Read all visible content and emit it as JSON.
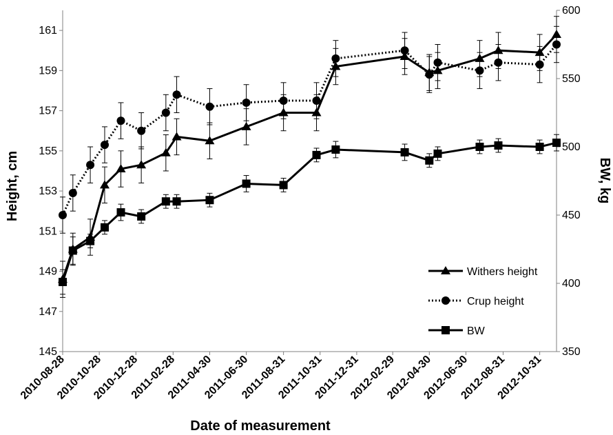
{
  "chart_data": {
    "type": "line",
    "xlabel": "Date of measurement",
    "ylabel_left": "Height, cm",
    "ylabel_right": "BW, kg",
    "ylim_left": [
      145,
      162
    ],
    "ylim_right": [
      350,
      600
    ],
    "yticks_left": [
      145,
      147,
      149,
      151,
      153,
      155,
      157,
      159,
      161
    ],
    "yticks_right": [
      350,
      400,
      450,
      500,
      550,
      600
    ],
    "xlim": [
      "2010-08-28",
      "2012-11-28"
    ],
    "xticks": [
      "2010-08-28",
      "2010-10-28",
      "2010-12-28",
      "2011-02-28",
      "2011-04-30",
      "2011-06-30",
      "2011-08-31",
      "2011-10-31",
      "2011-12-31",
      "2012-02-29",
      "2012-04-30",
      "2012-06-30",
      "2012-08-31",
      "2012-10-31"
    ],
    "legend_position": "bottom-right",
    "grid": false,
    "series": [
      {
        "name": "Withers height",
        "axis": "left",
        "marker": "triangle",
        "line_style": "solid",
        "color": "#000000",
        "points": [
          {
            "x": "2010-08-28",
            "y": 148.6,
            "err": 0.9
          },
          {
            "x": "2010-09-14",
            "y": 150.1,
            "err": 0.8
          },
          {
            "x": "2010-10-13",
            "y": 150.7,
            "err": 0.9
          },
          {
            "x": "2010-11-06",
            "y": 153.3,
            "err": 0.9
          },
          {
            "x": "2010-12-03",
            "y": 154.1,
            "err": 0.9
          },
          {
            "x": "2011-01-06",
            "y": 154.3,
            "err": 0.9
          },
          {
            "x": "2011-02-16",
            "y": 154.9,
            "err": 0.9
          },
          {
            "x": "2011-03-06",
            "y": 155.7,
            "err": 0.9
          },
          {
            "x": "2011-04-30",
            "y": 155.5,
            "err": 0.9
          },
          {
            "x": "2011-06-30",
            "y": 156.2,
            "err": 0.9
          },
          {
            "x": "2011-08-31",
            "y": 156.9,
            "err": 0.9
          },
          {
            "x": "2011-10-25",
            "y": 156.9,
            "err": 0.9
          },
          {
            "x": "2011-11-26",
            "y": 159.2,
            "err": 0.9
          },
          {
            "x": "2012-03-20",
            "y": 159.7,
            "err": 0.9
          },
          {
            "x": "2012-04-30",
            "y": 158.9,
            "err": 0.9
          },
          {
            "x": "2012-05-14",
            "y": 159.0,
            "err": 0.9
          },
          {
            "x": "2012-07-23",
            "y": 159.6,
            "err": 0.9
          },
          {
            "x": "2012-08-23",
            "y": 160.0,
            "err": 0.9
          },
          {
            "x": "2012-10-31",
            "y": 159.9,
            "err": 0.9
          },
          {
            "x": "2012-11-28",
            "y": 160.8,
            "err": 0.9
          }
        ]
      },
      {
        "name": "Crup height",
        "axis": "left",
        "marker": "circle",
        "line_style": "dotted",
        "color": "#000000",
        "points": [
          {
            "x": "2010-08-28",
            "y": 151.8,
            "err": 0.9
          },
          {
            "x": "2010-09-14",
            "y": 152.9,
            "err": 0.9
          },
          {
            "x": "2010-10-13",
            "y": 154.3,
            "err": 0.9
          },
          {
            "x": "2010-11-06",
            "y": 155.3,
            "err": 0.9
          },
          {
            "x": "2010-12-03",
            "y": 156.5,
            "err": 0.9
          },
          {
            "x": "2011-01-06",
            "y": 156.0,
            "err": 0.9
          },
          {
            "x": "2011-02-16",
            "y": 156.9,
            "err": 0.9
          },
          {
            "x": "2011-03-06",
            "y": 157.8,
            "err": 0.9
          },
          {
            "x": "2011-04-30",
            "y": 157.2,
            "err": 0.9
          },
          {
            "x": "2011-06-30",
            "y": 157.4,
            "err": 0.9
          },
          {
            "x": "2011-08-31",
            "y": 157.5,
            "err": 0.9
          },
          {
            "x": "2011-10-25",
            "y": 157.5,
            "err": 0.9
          },
          {
            "x": "2011-11-26",
            "y": 159.6,
            "err": 0.9
          },
          {
            "x": "2012-03-20",
            "y": 160.0,
            "err": 0.9
          },
          {
            "x": "2012-04-30",
            "y": 158.8,
            "err": 0.9
          },
          {
            "x": "2012-05-14",
            "y": 159.4,
            "err": 0.9
          },
          {
            "x": "2012-07-23",
            "y": 159.0,
            "err": 0.9
          },
          {
            "x": "2012-08-23",
            "y": 159.4,
            "err": 0.9
          },
          {
            "x": "2012-10-31",
            "y": 159.3,
            "err": 0.9
          },
          {
            "x": "2012-11-28",
            "y": 160.3,
            "err": 0.9
          }
        ]
      },
      {
        "name": "BW",
        "axis": "right",
        "marker": "square",
        "line_style": "solid",
        "color": "#000000",
        "points": [
          {
            "x": "2010-08-28",
            "y": 401,
            "err": 9
          },
          {
            "x": "2010-09-14",
            "y": 424,
            "err": 10
          },
          {
            "x": "2010-10-13",
            "y": 431,
            "err": 5
          },
          {
            "x": "2010-11-06",
            "y": 441,
            "err": 5
          },
          {
            "x": "2010-12-03",
            "y": 452,
            "err": 6
          },
          {
            "x": "2011-01-06",
            "y": 449,
            "err": 5
          },
          {
            "x": "2011-02-16",
            "y": 460,
            "err": 5
          },
          {
            "x": "2011-03-06",
            "y": 460,
            "err": 5
          },
          {
            "x": "2011-04-30",
            "y": 461,
            "err": 5
          },
          {
            "x": "2011-06-30",
            "y": 473,
            "err": 6
          },
          {
            "x": "2011-08-31",
            "y": 472,
            "err": 5
          },
          {
            "x": "2011-10-25",
            "y": 494,
            "err": 5
          },
          {
            "x": "2011-11-26",
            "y": 498,
            "err": 6
          },
          {
            "x": "2012-03-20",
            "y": 496,
            "err": 6
          },
          {
            "x": "2012-04-30",
            "y": 490,
            "err": 5
          },
          {
            "x": "2012-05-14",
            "y": 495,
            "err": 5
          },
          {
            "x": "2012-07-23",
            "y": 500,
            "err": 5
          },
          {
            "x": "2012-08-23",
            "y": 501,
            "err": 5
          },
          {
            "x": "2012-10-31",
            "y": 500,
            "err": 5
          },
          {
            "x": "2012-11-28",
            "y": 503,
            "err": 6
          }
        ]
      }
    ]
  }
}
